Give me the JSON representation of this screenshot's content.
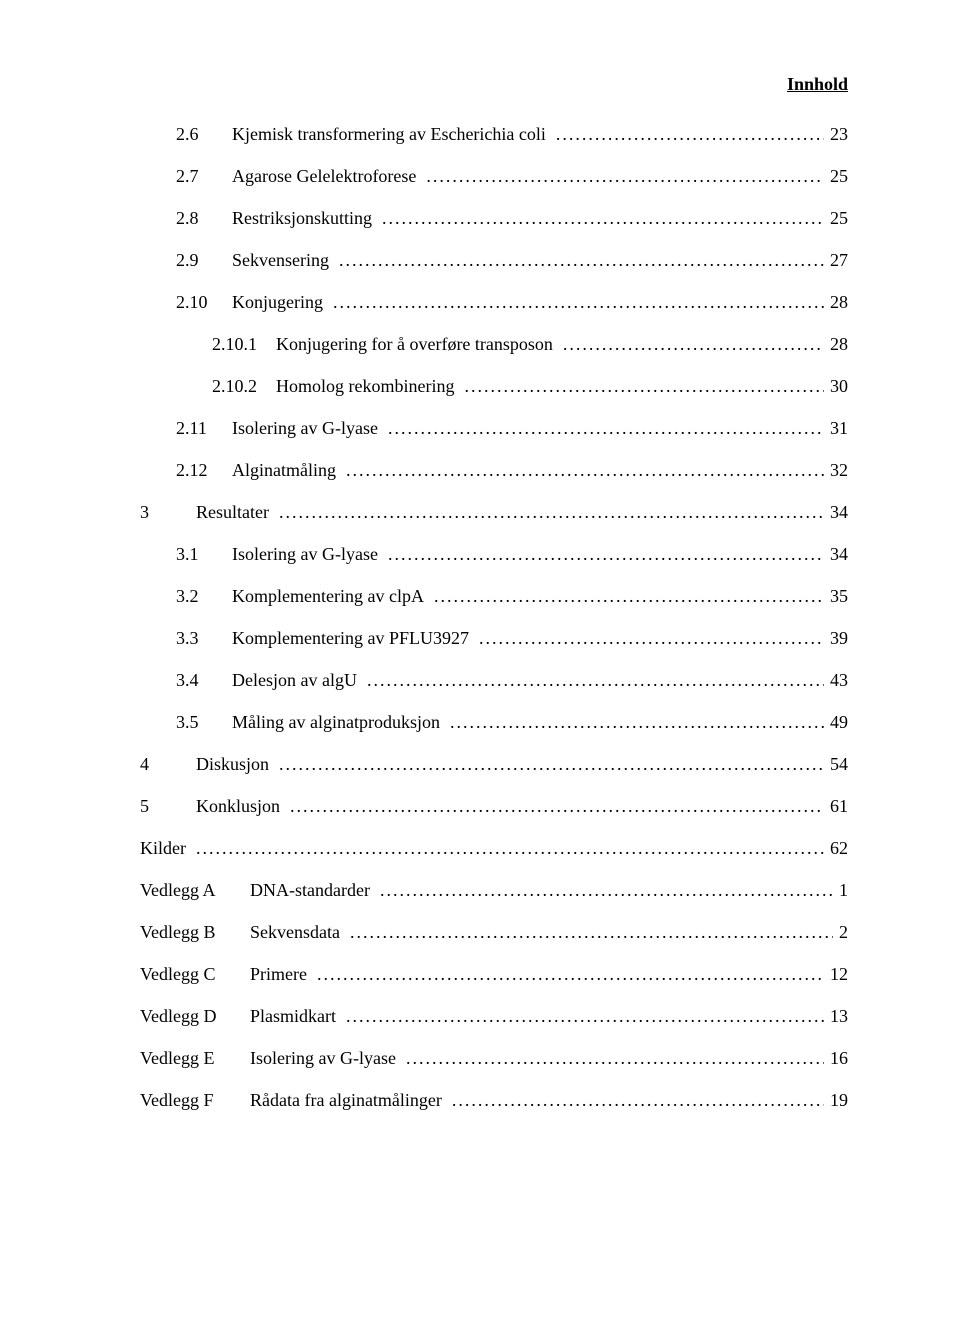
{
  "header": {
    "text": "Innhold"
  },
  "toc": {
    "entries": [
      {
        "level": "lvl2",
        "num": "2.6",
        "title": "Kjemisk transformering av Escherichia coli",
        "page": "23"
      },
      {
        "level": "lvl2",
        "num": "2.7",
        "title": "Agarose Gelelektroforese",
        "page": "25"
      },
      {
        "level": "lvl2",
        "num": "2.8",
        "title": "Restriksjonskutting",
        "page": "25"
      },
      {
        "level": "lvl2",
        "num": "2.9",
        "title": "Sekvensering",
        "page": "27"
      },
      {
        "level": "lvl2",
        "num": "2.10",
        "title": "Konjugering",
        "page": "28"
      },
      {
        "level": "lvl3",
        "num": "2.10.1",
        "title": "Konjugering for å overføre transposon",
        "page": "28"
      },
      {
        "level": "lvl3",
        "num": "2.10.2",
        "title": "Homolog rekombinering",
        "page": "30"
      },
      {
        "level": "lvl2",
        "num": "2.11",
        "title": "Isolering av G-lyase",
        "page": "31"
      },
      {
        "level": "lvl2",
        "num": "2.12",
        "title": "Alginatmåling",
        "page": "32"
      },
      {
        "level": "lvl1",
        "num": "3",
        "title": "Resultater",
        "page": "34"
      },
      {
        "level": "lvl2",
        "num": "3.1",
        "title": "Isolering av G-lyase",
        "page": "34"
      },
      {
        "level": "lvl2",
        "num": "3.2",
        "title": "Komplementering av clpA",
        "page": "35"
      },
      {
        "level": "lvl2",
        "num": "3.3",
        "title": "Komplementering av PFLU3927",
        "page": "39"
      },
      {
        "level": "lvl2",
        "num": "3.4",
        "title": "Delesjon av algU",
        "page": "43"
      },
      {
        "level": "lvl2",
        "num": "3.5",
        "title": "Måling av alginatproduksjon",
        "page": "49"
      },
      {
        "level": "lvl1",
        "num": "4",
        "title": "Diskusjon",
        "page": "54"
      },
      {
        "level": "lvl1",
        "num": "5",
        "title": "Konklusjon",
        "page": "61"
      },
      {
        "level": "lvl1",
        "num": "",
        "title": "Kilder",
        "page": "62",
        "nonum": true
      },
      {
        "level": "lvl1",
        "num": "Vedlegg A",
        "title": "DNA-standarder",
        "page": "1",
        "app": true
      },
      {
        "level": "lvl1",
        "num": "Vedlegg B",
        "title": "Sekvensdata",
        "page": "2",
        "app": true
      },
      {
        "level": "lvl1",
        "num": "Vedlegg C",
        "title": "Primere",
        "page": "12",
        "app": true
      },
      {
        "level": "lvl1",
        "num": "Vedlegg D",
        "title": "Plasmidkart",
        "page": "13",
        "app": true
      },
      {
        "level": "lvl1",
        "num": "Vedlegg E",
        "title": "Isolering av G-lyase",
        "page": "16",
        "app": true
      },
      {
        "level": "lvl1",
        "num": "Vedlegg F",
        "title": "Rådata fra alginatmålinger",
        "page": "19",
        "app": true
      }
    ]
  }
}
